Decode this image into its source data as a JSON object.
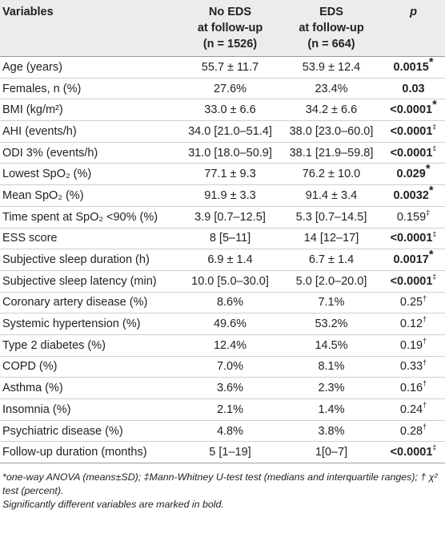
{
  "header": {
    "col0": "Variables",
    "col1": [
      "No EDS",
      "at follow-up",
      "(n = 1526)"
    ],
    "col2": [
      "EDS",
      "at follow-up",
      "(n = 664)"
    ],
    "col3": "p"
  },
  "rows": [
    {
      "label": "Age (years)",
      "no_eds": "55.7 ± 11.7",
      "eds": "53.9 ± 12.4",
      "p": "0.0015",
      "p_mark": "*",
      "bold": true
    },
    {
      "label": "Females, n (%)",
      "no_eds": "27.6%",
      "eds": "23.4%",
      "p": "0.03",
      "p_mark": "",
      "bold": true
    },
    {
      "label": "BMI (kg/m²)",
      "no_eds": "33.0 ± 6.6",
      "eds": "34.2 ± 6.6",
      "p": "<0.0001",
      "p_mark": "*",
      "bold": true
    },
    {
      "label": "AHI (events/h)",
      "no_eds": "34.0 [21.0–51.4]",
      "eds": "38.0 [23.0–60.0]",
      "p": "<0.0001",
      "p_mark": "‡",
      "bold": true
    },
    {
      "label": "ODI 3% (events/h)",
      "no_eds": "31.0 [18.0–50.9]",
      "eds": "38.1 [21.9–59.8]",
      "p": "<0.0001",
      "p_mark": "‡",
      "bold": true
    },
    {
      "label": "Lowest SpO₂ (%)",
      "no_eds": "77.1 ± 9.3",
      "eds": "76.2 ± 10.0",
      "p": "0.029",
      "p_mark": "*",
      "bold": true
    },
    {
      "label": "Mean SpO₂ (%)",
      "no_eds": "91.9 ± 3.3",
      "eds": "91.4 ± 3.4",
      "p": "0.0032",
      "p_mark": "*",
      "bold": true
    },
    {
      "label": "Time spent at SpO₂ <90% (%)",
      "no_eds": "3.9 [0.7–12.5]",
      "eds": "5.3 [0.7–14.5]",
      "p": "0.159",
      "p_mark": "‡",
      "bold": false
    },
    {
      "label": "ESS score",
      "no_eds": "8 [5–11]",
      "eds": "14 [12–17]",
      "p": "<0.0001",
      "p_mark": "‡",
      "bold": true
    },
    {
      "label": "Subjective sleep duration (h)",
      "no_eds": "6.9 ± 1.4",
      "eds": "6.7 ± 1.4",
      "p": "0.0017",
      "p_mark": "*",
      "bold": true
    },
    {
      "label": "Subjective sleep latency (min)",
      "no_eds": "10.0 [5.0–30.0]",
      "eds": "5.0 [2.0–20.0]",
      "p": "<0.0001",
      "p_mark": "‡",
      "bold": true
    },
    {
      "label": "Coronary artery disease (%)",
      "no_eds": "8.6%",
      "eds": "7.1%",
      "p": "0.25",
      "p_mark": "†",
      "bold": false
    },
    {
      "label": "Systemic hypertension (%)",
      "no_eds": "49.6%",
      "eds": "53.2%",
      "p": "0.12",
      "p_mark": "†",
      "bold": false
    },
    {
      "label": "Type 2 diabetes (%)",
      "no_eds": "12.4%",
      "eds": "14.5%",
      "p": "0.19",
      "p_mark": "†",
      "bold": false
    },
    {
      "label": "COPD (%)",
      "no_eds": "7.0%",
      "eds": "8.1%",
      "p": "0.33",
      "p_mark": "†",
      "bold": false
    },
    {
      "label": "Asthma (%)",
      "no_eds": "3.6%",
      "eds": "2.3%",
      "p": "0.16",
      "p_mark": "†",
      "bold": false
    },
    {
      "label": "Insomnia (%)",
      "no_eds": "2.1%",
      "eds": "1.4%",
      "p": "0.24",
      "p_mark": "†",
      "bold": false
    },
    {
      "label": "Psychiatric disease (%)",
      "no_eds": "4.8%",
      "eds": "3.8%",
      "p": "0.28",
      "p_mark": "†",
      "bold": false
    },
    {
      "label": "Follow-up duration (months)",
      "no_eds": "5 [1–19]",
      "eds": "1[0–7]",
      "p": "<0.0001",
      "p_mark": "‡",
      "bold": true
    }
  ],
  "footnotes": [
    "*one-way ANOVA (means±SD); ‡Mann-Whitney U-test test (medians and interquartile ranges); † χ² test (percent).",
    "Significantly different variables are marked in bold."
  ]
}
